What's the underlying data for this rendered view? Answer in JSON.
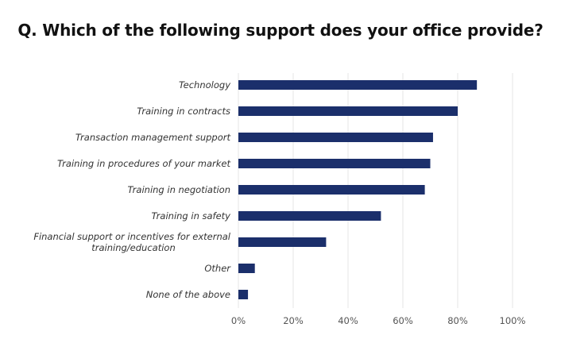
{
  "chart_data": {
    "type": "bar",
    "orientation": "horizontal",
    "title": "Q.  Which of the following support does your office provide?",
    "categories": [
      [
        "Technology"
      ],
      [
        "Training in contracts"
      ],
      [
        "Transaction management support"
      ],
      [
        "Training in procedures of your market"
      ],
      [
        "Training in negotiation"
      ],
      [
        "Training in safety"
      ],
      [
        "Financial support or incentives for external",
        "training/education"
      ],
      [
        "Other"
      ],
      [
        "None of the above"
      ]
    ],
    "values": [
      87,
      80,
      71,
      70,
      68,
      52,
      32,
      6,
      3.5
    ],
    "xlim": [
      0,
      100
    ],
    "xticks": [
      "0%",
      "20%",
      "40%",
      "60%",
      "80%",
      "100%"
    ],
    "grid": "vertical",
    "colors": {
      "bar": "#1b2f6b",
      "grid": "#e4e4e4"
    }
  }
}
